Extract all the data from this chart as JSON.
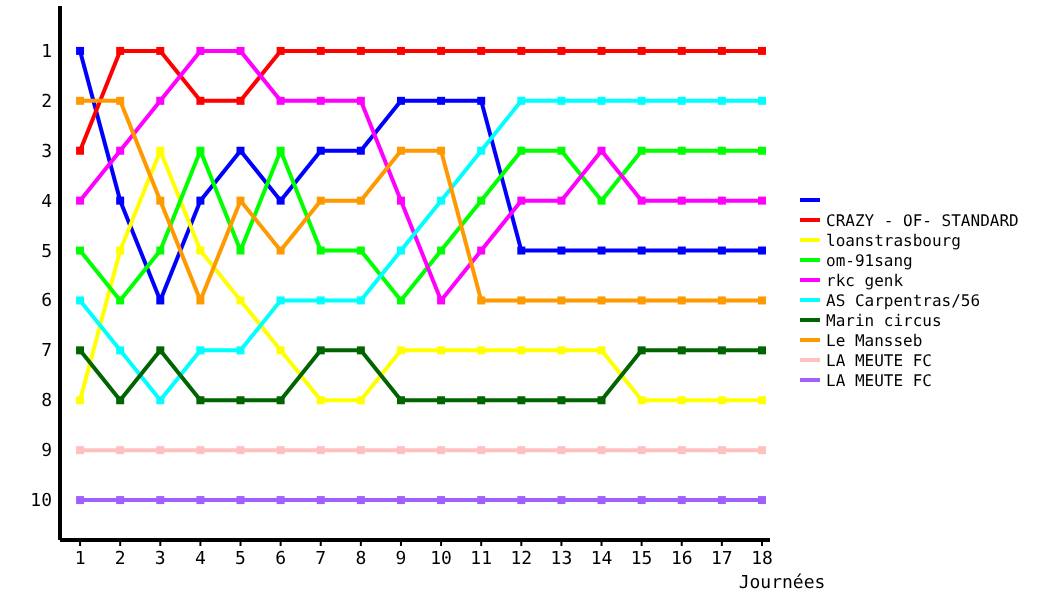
{
  "chart_data": {
    "type": "line",
    "xlabel": "Journées",
    "x": [
      1,
      2,
      3,
      4,
      5,
      6,
      7,
      8,
      9,
      10,
      11,
      12,
      13,
      14,
      15,
      16,
      17,
      18
    ],
    "xlim": [
      0.5,
      18.2
    ],
    "xticks": [
      1,
      2,
      3,
      4,
      5,
      6,
      7,
      8,
      9,
      10,
      11,
      12,
      13,
      14,
      15,
      16,
      17,
      18
    ],
    "ylim": [
      10.8,
      0.1
    ],
    "yticks": [
      1,
      2,
      3,
      4,
      5,
      6,
      7,
      8,
      9,
      10
    ],
    "grid": false,
    "legend": "right",
    "marker": "square",
    "line_style": "solid",
    "series": [
      {
        "color": "#0000ff",
        "values": [
          1,
          4,
          6,
          4,
          3,
          4,
          3,
          3,
          2,
          2,
          2,
          5,
          5,
          5,
          5,
          5,
          5,
          5
        ]
      },
      {
        "name": "CRAZY - OF- STANDARD",
        "color": "#ff0000",
        "values": [
          3,
          1,
          1,
          2,
          2,
          1,
          1,
          1,
          1,
          1,
          1,
          1,
          1,
          1,
          1,
          1,
          1,
          1
        ]
      },
      {
        "name": "loanstrasbourg",
        "color": "#ffff00",
        "values": [
          8,
          5,
          3,
          5,
          6,
          7,
          8,
          8,
          7,
          7,
          7,
          7,
          7,
          7,
          8,
          8,
          8,
          8
        ]
      },
      {
        "name": "om-91sang",
        "color": "#00ff00",
        "values": [
          5,
          6,
          5,
          3,
          5,
          3,
          5,
          5,
          6,
          5,
          4,
          3,
          3,
          4,
          3,
          3,
          3,
          3
        ]
      },
      {
        "name": "rkc genk",
        "color": "#ff00ff",
        "values": [
          4,
          3,
          2,
          1,
          1,
          2,
          2,
          2,
          4,
          6,
          5,
          4,
          4,
          3,
          4,
          4,
          4,
          4
        ]
      },
      {
        "name": "AS Carpentras/56",
        "color": "#00ffff",
        "values": [
          6,
          7,
          8,
          7,
          7,
          6,
          6,
          6,
          5,
          4,
          3,
          2,
          2,
          2,
          2,
          2,
          2,
          2
        ]
      },
      {
        "name": "Marin circus",
        "color": "#006400",
        "values": [
          7,
          8,
          7,
          8,
          8,
          8,
          7,
          7,
          8,
          8,
          8,
          8,
          8,
          8,
          7,
          7,
          7,
          7
        ]
      },
      {
        "name": "Le Mansseb",
        "color": "#ff9900",
        "values": [
          2,
          2,
          4,
          6,
          4,
          5,
          4,
          4,
          3,
          3,
          6,
          6,
          6,
          6,
          6,
          6,
          6,
          6
        ]
      },
      {
        "name": "LA MEUTE FC",
        "color": "#ffc0c0",
        "values": [
          9,
          9,
          9,
          9,
          9,
          9,
          9,
          9,
          9,
          9,
          9,
          9,
          9,
          9,
          9,
          9,
          9,
          9
        ]
      },
      {
        "name": "LA MEUTE FC",
        "color": "#a060ff",
        "values": [
          10,
          10,
          10,
          10,
          10,
          10,
          10,
          10,
          10,
          10,
          10,
          10,
          10,
          10,
          10,
          10,
          10,
          10
        ]
      }
    ]
  }
}
